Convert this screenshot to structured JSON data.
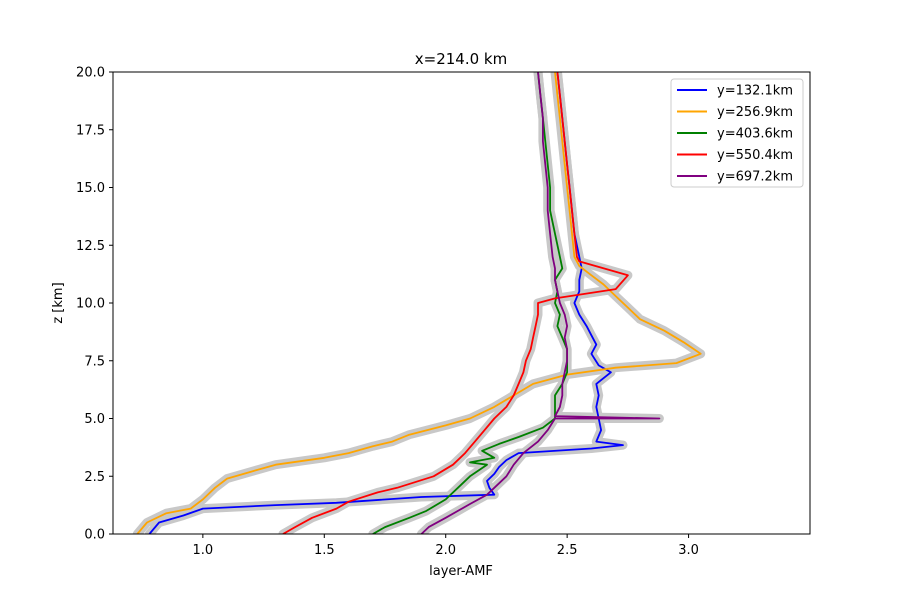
{
  "chart_data": {
    "type": "line",
    "title": "x=214.0 km",
    "xlabel": "layer-AMF",
    "ylabel": "z [km]",
    "xlim": [
      0.63,
      3.5
    ],
    "ylim": [
      0,
      20
    ],
    "xticks": [
      "1.0",
      "1.5",
      "2.0",
      "2.5",
      "3.0"
    ],
    "yticks": [
      "0.0",
      "2.5",
      "5.0",
      "7.5",
      "10.0",
      "12.5",
      "15.0",
      "17.5",
      "20.0"
    ],
    "grid": false,
    "legend_position": "top-right",
    "band_color": "#c8c8c8",
    "series": [
      {
        "name": "y=132.1km",
        "color": "#0000ff",
        "points": [
          [
            0.78,
            0
          ],
          [
            0.82,
            0.5
          ],
          [
            0.92,
            0.8
          ],
          [
            1.0,
            1.1
          ],
          [
            1.3,
            1.25
          ],
          [
            1.55,
            1.35
          ],
          [
            1.9,
            1.6
          ],
          [
            2.2,
            1.7
          ],
          [
            2.18,
            2.0
          ],
          [
            2.17,
            2.3
          ],
          [
            2.2,
            2.6
          ],
          [
            2.22,
            2.9
          ],
          [
            2.25,
            3.2
          ],
          [
            2.3,
            3.5
          ],
          [
            2.6,
            3.7
          ],
          [
            2.73,
            3.85
          ],
          [
            2.62,
            4.0
          ],
          [
            2.64,
            4.5
          ],
          [
            2.63,
            5.0
          ],
          [
            2.62,
            5.5
          ],
          [
            2.63,
            6.0
          ],
          [
            2.62,
            6.5
          ],
          [
            2.68,
            7.0
          ],
          [
            2.63,
            7.3
          ],
          [
            2.6,
            7.8
          ],
          [
            2.62,
            8.2
          ],
          [
            2.6,
            8.6
          ],
          [
            2.58,
            9.0
          ],
          [
            2.55,
            9.5
          ],
          [
            2.53,
            10.0
          ],
          [
            2.55,
            10.5
          ],
          [
            2.55,
            11.0
          ],
          [
            2.56,
            11.5
          ],
          [
            2.55,
            12.0
          ],
          [
            2.53,
            13.0
          ],
          [
            2.52,
            14.0
          ],
          [
            2.51,
            15.0
          ],
          [
            2.5,
            16.0
          ],
          [
            2.49,
            17.0
          ],
          [
            2.48,
            18.0
          ],
          [
            2.47,
            19.0
          ],
          [
            2.46,
            20.0
          ]
        ]
      },
      {
        "name": "y=256.9km",
        "color": "#ffa500",
        "points": [
          [
            0.73,
            0
          ],
          [
            0.77,
            0.5
          ],
          [
            0.85,
            0.9
          ],
          [
            0.95,
            1.1
          ],
          [
            1.0,
            1.5
          ],
          [
            1.05,
            2.0
          ],
          [
            1.1,
            2.4
          ],
          [
            1.2,
            2.7
          ],
          [
            1.3,
            3.0
          ],
          [
            1.5,
            3.3
          ],
          [
            1.6,
            3.5
          ],
          [
            1.7,
            3.8
          ],
          [
            1.78,
            4.0
          ],
          [
            1.85,
            4.3
          ],
          [
            2.0,
            4.7
          ],
          [
            2.1,
            5.0
          ],
          [
            2.2,
            5.5
          ],
          [
            2.28,
            6.0
          ],
          [
            2.36,
            6.5
          ],
          [
            2.5,
            6.9
          ],
          [
            2.7,
            7.2
          ],
          [
            2.95,
            7.4
          ],
          [
            3.05,
            7.8
          ],
          [
            2.98,
            8.3
          ],
          [
            2.9,
            8.8
          ],
          [
            2.8,
            9.3
          ],
          [
            2.75,
            9.8
          ],
          [
            2.7,
            10.3
          ],
          [
            2.65,
            10.8
          ],
          [
            2.6,
            11.2
          ],
          [
            2.55,
            11.6
          ],
          [
            2.53,
            12.0
          ],
          [
            2.52,
            13.0
          ],
          [
            2.51,
            14.0
          ],
          [
            2.5,
            15.0
          ],
          [
            2.49,
            16.0
          ],
          [
            2.48,
            17.0
          ],
          [
            2.47,
            18.0
          ],
          [
            2.46,
            19.0
          ],
          [
            2.45,
            20.0
          ]
        ]
      },
      {
        "name": "y=403.6km",
        "color": "#008000",
        "points": [
          [
            1.7,
            0
          ],
          [
            1.75,
            0.3
          ],
          [
            1.85,
            0.7
          ],
          [
            1.92,
            1.0
          ],
          [
            2.0,
            1.5
          ],
          [
            2.05,
            2.0
          ],
          [
            2.1,
            2.5
          ],
          [
            2.17,
            3.0
          ],
          [
            2.1,
            3.1
          ],
          [
            2.2,
            3.3
          ],
          [
            2.15,
            3.6
          ],
          [
            2.22,
            3.9
          ],
          [
            2.3,
            4.2
          ],
          [
            2.4,
            4.6
          ],
          [
            2.45,
            5.0
          ],
          [
            2.45,
            5.5
          ],
          [
            2.45,
            6.0
          ],
          [
            2.48,
            6.5
          ],
          [
            2.5,
            7.0
          ],
          [
            2.5,
            7.5
          ],
          [
            2.5,
            8.0
          ],
          [
            2.48,
            8.5
          ],
          [
            2.46,
            9.0
          ],
          [
            2.47,
            9.5
          ],
          [
            2.45,
            10.0
          ],
          [
            2.46,
            10.5
          ],
          [
            2.45,
            11.0
          ],
          [
            2.48,
            11.5
          ],
          [
            2.47,
            12.0
          ],
          [
            2.45,
            13.0
          ],
          [
            2.43,
            14.0
          ],
          [
            2.43,
            15.0
          ],
          [
            2.42,
            16.0
          ],
          [
            2.41,
            17.0
          ],
          [
            2.4,
            18.0
          ],
          [
            2.39,
            19.0
          ],
          [
            2.38,
            20.0
          ]
        ]
      },
      {
        "name": "y=550.4km",
        "color": "#ff0000",
        "points": [
          [
            1.33,
            0
          ],
          [
            1.38,
            0.3
          ],
          [
            1.45,
            0.7
          ],
          [
            1.55,
            1.1
          ],
          [
            1.6,
            1.4
          ],
          [
            1.72,
            1.8
          ],
          [
            1.8,
            2.0
          ],
          [
            1.95,
            2.5
          ],
          [
            2.03,
            3.0
          ],
          [
            2.08,
            3.5
          ],
          [
            2.12,
            4.0
          ],
          [
            2.16,
            4.5
          ],
          [
            2.2,
            5.0
          ],
          [
            2.25,
            5.5
          ],
          [
            2.28,
            6.0
          ],
          [
            2.3,
            6.5
          ],
          [
            2.32,
            7.0
          ],
          [
            2.33,
            7.5
          ],
          [
            2.35,
            8.0
          ],
          [
            2.36,
            8.5
          ],
          [
            2.37,
            9.0
          ],
          [
            2.38,
            9.5
          ],
          [
            2.38,
            10.0
          ],
          [
            2.45,
            10.2
          ],
          [
            2.7,
            10.6
          ],
          [
            2.75,
            11.2
          ],
          [
            2.55,
            11.8
          ],
          [
            2.54,
            12.0
          ],
          [
            2.53,
            13.0
          ],
          [
            2.52,
            14.0
          ],
          [
            2.51,
            15.0
          ],
          [
            2.5,
            16.0
          ],
          [
            2.49,
            17.0
          ],
          [
            2.48,
            18.0
          ],
          [
            2.47,
            19.0
          ],
          [
            2.46,
            20.0
          ]
        ]
      },
      {
        "name": "y=697.2km",
        "color": "#800080",
        "points": [
          [
            1.9,
            0
          ],
          [
            1.93,
            0.3
          ],
          [
            2.0,
            0.7
          ],
          [
            2.05,
            1.0
          ],
          [
            2.1,
            1.3
          ],
          [
            2.17,
            1.7
          ],
          [
            2.2,
            2.0
          ],
          [
            2.25,
            2.5
          ],
          [
            2.28,
            3.0
          ],
          [
            2.32,
            3.5
          ],
          [
            2.38,
            4.0
          ],
          [
            2.42,
            4.5
          ],
          [
            2.45,
            5.0
          ],
          [
            2.88,
            5.0
          ],
          [
            2.45,
            5.1
          ],
          [
            2.47,
            5.5
          ],
          [
            2.48,
            6.0
          ],
          [
            2.48,
            6.5
          ],
          [
            2.49,
            7.0
          ],
          [
            2.5,
            7.5
          ],
          [
            2.5,
            8.0
          ],
          [
            2.49,
            8.5
          ],
          [
            2.5,
            9.0
          ],
          [
            2.49,
            9.5
          ],
          [
            2.47,
            10.0
          ],
          [
            2.46,
            10.5
          ],
          [
            2.45,
            11.0
          ],
          [
            2.45,
            11.5
          ],
          [
            2.44,
            12.0
          ],
          [
            2.43,
            13.0
          ],
          [
            2.42,
            14.0
          ],
          [
            2.42,
            15.0
          ],
          [
            2.41,
            16.0
          ],
          [
            2.4,
            17.0
          ],
          [
            2.4,
            18.0
          ],
          [
            2.39,
            19.0
          ],
          [
            2.38,
            20.0
          ]
        ]
      }
    ]
  }
}
